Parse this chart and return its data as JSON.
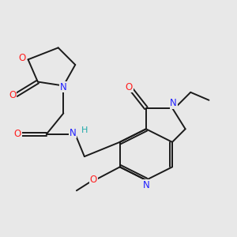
{
  "background_color": "#e8e8e8",
  "bond_color": "#1a1a1a",
  "atom_colors": {
    "N": "#2020ff",
    "O": "#ff2020",
    "H": "#20aaaa"
  },
  "figsize": [
    3.0,
    3.0
  ],
  "dpi": 100,
  "lw": 1.4,
  "fontsize": 8.5
}
